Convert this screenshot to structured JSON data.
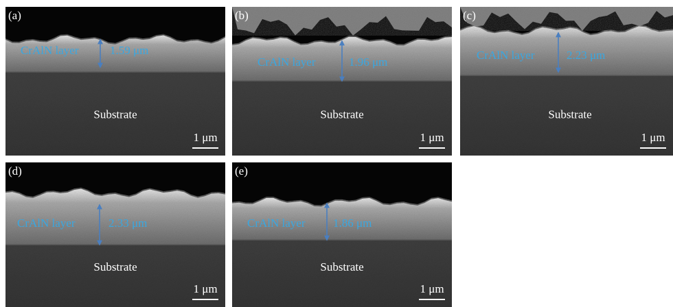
{
  "panels": [
    {
      "label": "(a)",
      "layer_label": "CrAlN layer",
      "thickness": "1.59 μm",
      "substrate_label": "Substrate",
      "scale_bar": "1 μm"
    },
    {
      "label": "(b)",
      "layer_label": "CrAlN layer",
      "thickness": "1.96 μm",
      "substrate_label": "Substrate",
      "scale_bar": "1 μm"
    },
    {
      "label": "(c)",
      "layer_label": "CrAlN layer",
      "thickness": "2.23 μm",
      "substrate_label": "Substrate",
      "scale_bar": "1 μm"
    },
    {
      "label": "(d)",
      "layer_label": "CrAlN layer",
      "thickness": "2.33 μm",
      "substrate_label": "Substrate",
      "scale_bar": "1 μm"
    },
    {
      "label": "(e)",
      "layer_label": "CrAlN layer",
      "thickness": "1.86 μm",
      "substrate_label": "Substrate",
      "scale_bar": "1 μm"
    }
  ]
}
